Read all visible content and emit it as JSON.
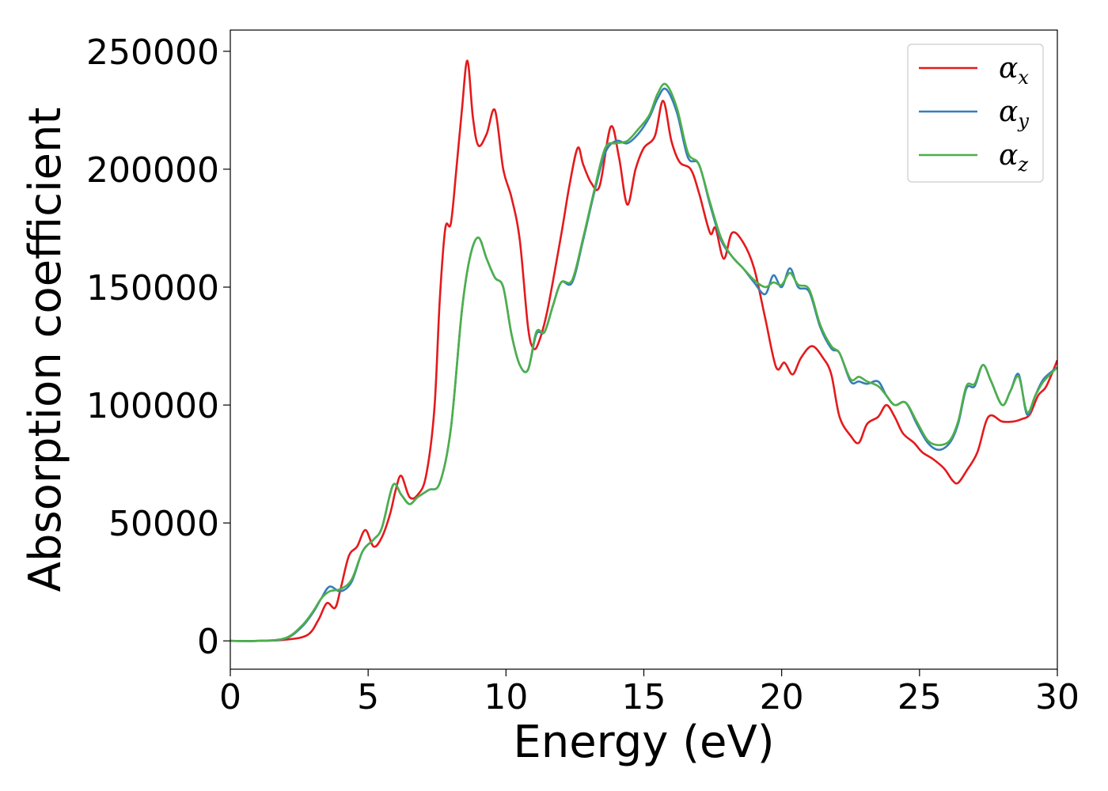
{
  "chart_data": {
    "type": "line",
    "xlabel": "Energy (eV)",
    "ylabel": "Absorption coefficient",
    "xlim": [
      0,
      30
    ],
    "ylim": [
      -12000,
      259000
    ],
    "xticks": [
      0,
      5,
      10,
      15,
      20,
      25,
      30
    ],
    "xtick_labels": [
      "0",
      "5",
      "10",
      "15",
      "20",
      "25",
      "30"
    ],
    "yticks": [
      0,
      50000,
      100000,
      150000,
      200000,
      250000
    ],
    "ytick_labels": [
      "0",
      "50000",
      "100000",
      "150000",
      "200000",
      "250000"
    ],
    "grid": false,
    "legend_position": "top-right",
    "series": [
      {
        "name": "α_x",
        "legend_base": "α",
        "legend_sub": "x",
        "color": "#e41a1c",
        "x": [
          0,
          1,
          2,
          2.8,
          3.2,
          3.5,
          3.8,
          4.0,
          4.3,
          4.6,
          4.9,
          5.2,
          5.5,
          5.8,
          6.0,
          6.2,
          6.5,
          6.8,
          7.1,
          7.4,
          7.6,
          7.8,
          8.0,
          8.2,
          8.4,
          8.6,
          8.8,
          9.0,
          9.3,
          9.6,
          9.9,
          10.2,
          10.5,
          10.8,
          11.0,
          11.2,
          11.5,
          12.0,
          12.3,
          12.6,
          12.8,
          13.1,
          13.4,
          13.8,
          14.1,
          14.4,
          14.7,
          15.0,
          15.4,
          15.7,
          16.0,
          16.3,
          16.7,
          17.0,
          17.4,
          17.6,
          17.9,
          18.2,
          18.6,
          19.0,
          19.4,
          19.8,
          20.1,
          20.4,
          20.7,
          21.1,
          21.5,
          21.8,
          22.1,
          22.5,
          22.8,
          23.1,
          23.5,
          23.8,
          24.1,
          24.4,
          24.8,
          25.1,
          25.5,
          25.9,
          26.2,
          26.4,
          26.7,
          27.1,
          27.5,
          28.0,
          28.4,
          28.7,
          29.0,
          29.3,
          29.6,
          30.0
        ],
        "y": [
          0,
          0,
          500,
          2500,
          9000,
          16000,
          14000,
          22000,
          36000,
          40000,
          47000,
          40000,
          44000,
          54000,
          64000,
          70000,
          61000,
          62000,
          70000,
          98000,
          145000,
          175000,
          177000,
          200000,
          225000,
          246000,
          222000,
          210000,
          215000,
          225000,
          200000,
          188000,
          170000,
          133000,
          124000,
          127000,
          140000,
          172000,
          193000,
          209000,
          202000,
          194000,
          193000,
          218000,
          205000,
          185000,
          200000,
          209000,
          214000,
          229000,
          212000,
          203000,
          200000,
          190000,
          173000,
          175000,
          162000,
          173000,
          169000,
          158000,
          137000,
          116000,
          118000,
          113000,
          120000,
          125000,
          120000,
          113000,
          95000,
          87000,
          84000,
          92000,
          95000,
          100000,
          95000,
          88000,
          84000,
          80000,
          77000,
          73000,
          68000,
          67000,
          72000,
          80000,
          95000,
          93000,
          93000,
          94000,
          96000,
          104000,
          108000,
          119000
        ]
      },
      {
        "name": "α_y",
        "legend_base": "α",
        "legend_sub": "y",
        "color": "#377eb8",
        "x": [
          0,
          1,
          2,
          2.6,
          3.0,
          3.3,
          3.6,
          4.0,
          4.4,
          4.8,
          5.2,
          5.5,
          5.9,
          6.2,
          6.5,
          6.8,
          7.2,
          7.6,
          8.0,
          8.4,
          8.7,
          9.0,
          9.3,
          9.6,
          9.9,
          10.2,
          10.5,
          10.8,
          11.1,
          11.4,
          11.7,
          12.0,
          12.4,
          12.8,
          13.2,
          13.6,
          14.0,
          14.4,
          14.8,
          15.2,
          15.5,
          15.8,
          16.2,
          16.6,
          17.0,
          17.4,
          17.8,
          18.2,
          18.6,
          19.0,
          19.4,
          19.7,
          20.0,
          20.3,
          20.6,
          21.0,
          21.4,
          21.8,
          22.1,
          22.5,
          22.8,
          23.1,
          23.5,
          23.8,
          24.1,
          24.5,
          24.9,
          25.3,
          25.7,
          26.1,
          26.4,
          26.7,
          27.0,
          27.3,
          27.6,
          28.0,
          28.3,
          28.6,
          28.9,
          29.2,
          29.5,
          30.0
        ],
        "y": [
          0,
          0,
          1000,
          6000,
          12000,
          18000,
          23000,
          21000,
          25000,
          38000,
          43000,
          48000,
          66000,
          62000,
          58000,
          61000,
          64000,
          67000,
          90000,
          140000,
          163000,
          171000,
          162000,
          154000,
          150000,
          130000,
          117000,
          115000,
          130000,
          131000,
          142000,
          152000,
          152000,
          170000,
          190000,
          207000,
          212000,
          211000,
          215000,
          222000,
          230000,
          234000,
          224000,
          205000,
          202000,
          185000,
          170000,
          163000,
          158000,
          152000,
          147000,
          155000,
          150000,
          158000,
          150000,
          148000,
          133000,
          124000,
          122000,
          110000,
          110000,
          109000,
          110000,
          104000,
          100000,
          101000,
          92000,
          84000,
          81000,
          84000,
          92000,
          107000,
          108000,
          117000,
          110000,
          100000,
          106000,
          113000,
          96000,
          104000,
          111000,
          116000
        ]
      },
      {
        "name": "α_z",
        "legend_base": "α",
        "legend_sub": "z",
        "color": "#4daf4a",
        "x": [
          0,
          1,
          2,
          2.6,
          3.0,
          3.3,
          3.6,
          4.0,
          4.4,
          4.8,
          5.2,
          5.5,
          5.9,
          6.2,
          6.5,
          6.8,
          7.2,
          7.6,
          8.0,
          8.4,
          8.7,
          9.0,
          9.3,
          9.6,
          9.9,
          10.2,
          10.5,
          10.8,
          11.1,
          11.4,
          11.7,
          12.0,
          12.4,
          12.8,
          13.2,
          13.6,
          14.0,
          14.4,
          14.8,
          15.2,
          15.5,
          15.8,
          16.2,
          16.6,
          17.0,
          17.4,
          17.8,
          18.2,
          18.6,
          19.0,
          19.4,
          19.7,
          20.0,
          20.3,
          20.6,
          21.0,
          21.4,
          21.8,
          22.1,
          22.5,
          22.8,
          23.1,
          23.5,
          23.8,
          24.1,
          24.5,
          24.9,
          25.3,
          25.7,
          26.1,
          26.4,
          26.7,
          27.0,
          27.3,
          27.6,
          28.0,
          28.3,
          28.6,
          28.9,
          29.2,
          29.5,
          30.0
        ],
        "y": [
          0,
          0,
          1200,
          6500,
          12500,
          18000,
          21000,
          22000,
          26000,
          38000,
          43000,
          48000,
          66000,
          62000,
          58000,
          61000,
          64000,
          67000,
          90000,
          140000,
          163000,
          171000,
          162000,
          154000,
          150000,
          130000,
          117000,
          115000,
          131000,
          131000,
          142000,
          152000,
          153000,
          171000,
          191000,
          209000,
          211000,
          212000,
          217000,
          223000,
          232000,
          236000,
          226000,
          207000,
          202000,
          186000,
          171000,
          163000,
          158000,
          153000,
          150000,
          152000,
          151000,
          156000,
          151000,
          149000,
          134000,
          125000,
          122000,
          111000,
          112000,
          110000,
          108000,
          104000,
          100000,
          101000,
          93000,
          85000,
          83000,
          85000,
          93000,
          108000,
          109000,
          117000,
          110000,
          100000,
          106000,
          112000,
          97000,
          104000,
          110000,
          116000
        ]
      }
    ]
  }
}
